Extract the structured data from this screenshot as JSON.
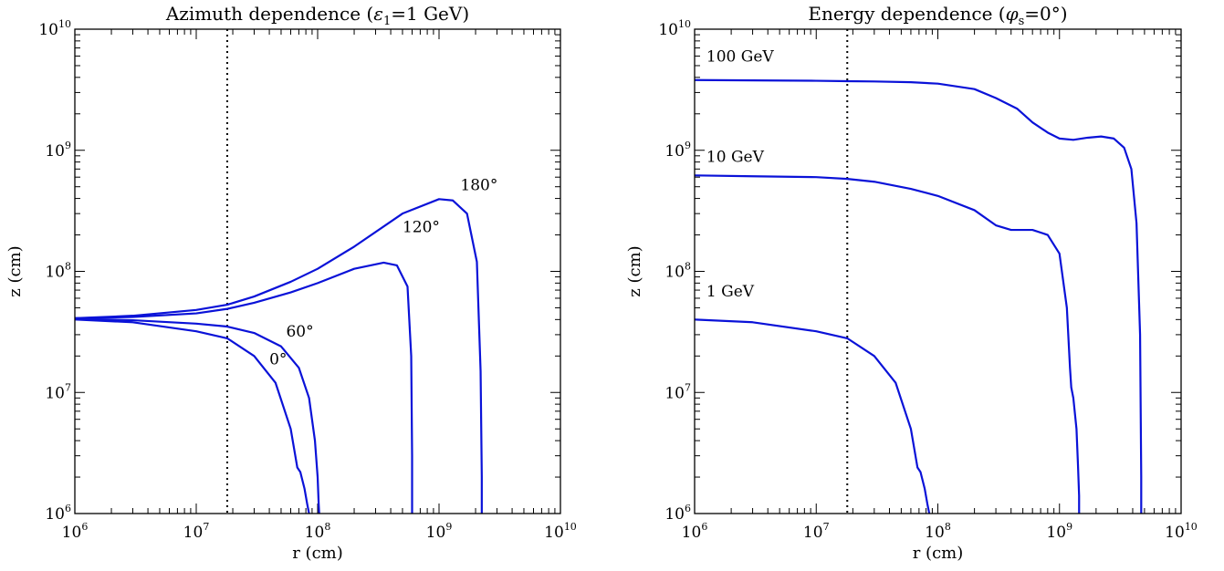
{
  "chart_data": [
    {
      "type": "line",
      "title_main": "Azimuth dependence (",
      "title_symbol": "ε",
      "title_sub": "1",
      "title_rest": "=1 GeV)",
      "xlabel": "r (cm)",
      "ylabel": "z (cm)",
      "xlim": [
        1000000.0,
        10000000000.0
      ],
      "ylim": [
        1000000.0,
        10000000000.0
      ],
      "x_scale": "log",
      "y_scale": "log",
      "x_ticks": [
        {
          "base": "10",
          "exp": "6",
          "value": 1000000.0
        },
        {
          "base": "10",
          "exp": "7",
          "value": 10000000.0
        },
        {
          "base": "10",
          "exp": "8",
          "value": 100000000.0
        },
        {
          "base": "10",
          "exp": "9",
          "value": 1000000000.0
        },
        {
          "base": "10",
          "exp": "10",
          "value": 10000000000.0
        }
      ],
      "y_ticks": [
        {
          "base": "10",
          "exp": "6",
          "value": 1000000.0
        },
        {
          "base": "10",
          "exp": "7",
          "value": 10000000.0
        },
        {
          "base": "10",
          "exp": "8",
          "value": 100000000.0
        },
        {
          "base": "10",
          "exp": "9",
          "value": 1000000000.0
        },
        {
          "base": "10",
          "exp": "10",
          "value": 10000000000.0
        }
      ],
      "vertical_line_x": 18000000.0,
      "series": [
        {
          "label": "0°",
          "label_at": [
            40000000.0,
            17000000.0
          ],
          "x": [
            1000000.0,
            3000000.0,
            10000000.0,
            18000000.0,
            30000000.0,
            45000000.0,
            60000000.0,
            68000000.0,
            72000000.0,
            78000000.0,
            82000000.0,
            85000000.0
          ],
          "y": [
            40000000.0,
            38000000.0,
            32000000.0,
            28000000.0,
            20000000.0,
            12000000.0,
            5000000.0,
            2400000.0,
            2200000.0,
            1600000.0,
            1200000.0,
            1000000.0
          ]
        },
        {
          "label": "60°",
          "label_at": [
            55000000.0,
            29000000.0
          ],
          "x": [
            1000000.0,
            3000000.0,
            10000000.0,
            18000000.0,
            30000000.0,
            50000000.0,
            70000000.0,
            85000000.0,
            95000000.0,
            100000000.0,
            102000000.0,
            103000000.0
          ],
          "y": [
            40500000.0,
            39500000.0,
            37000000.0,
            35000000.0,
            31000000.0,
            24000000.0,
            16000000.0,
            9000000.0,
            4000000.0,
            2000000.0,
            1200000.0,
            1000000.0
          ]
        },
        {
          "label": "120°",
          "label_at": [
            500000000.0,
            210000000.0
          ],
          "x": [
            1000000.0,
            3000000.0,
            10000000.0,
            18000000.0,
            30000000.0,
            60000000.0,
            100000000.0,
            200000000.0,
            350000000.0,
            450000000.0,
            550000000.0,
            590000000.0,
            600000000.0,
            600000000.0
          ],
          "y": [
            41000000.0,
            42000000.0,
            45000000.0,
            49000000.0,
            55000000.0,
            67000000.0,
            80000000.0,
            105000000.0,
            118000000.0,
            112000000.0,
            75000000.0,
            20000000.0,
            3000000.0,
            1000000.0
          ]
        },
        {
          "label": "180°",
          "label_at": [
            1500000000.0,
            470000000.0
          ],
          "x": [
            1000000.0,
            3000000.0,
            10000000.0,
            18000000.0,
            30000000.0,
            60000000.0,
            100000000.0,
            200000000.0,
            500000000.0,
            1000000000.0,
            1300000000.0,
            1700000000.0,
            2050000000.0,
            2200000000.0,
            2250000000.0,
            2250000000.0
          ],
          "y": [
            41000000.0,
            43000000.0,
            48000000.0,
            53000000.0,
            62000000.0,
            82000000.0,
            105000000.0,
            160000000.0,
            300000000.0,
            395000000.0,
            385000000.0,
            300000000.0,
            120000000.0,
            15000000.0,
            2000000.0,
            1000000.0
          ]
        }
      ]
    },
    {
      "type": "line",
      "title_main": "Energy dependence (",
      "title_symbol": "φ",
      "title_sub": "s",
      "title_rest": "=0°)",
      "xlabel": "r (cm)",
      "ylabel": "z (cm)",
      "xlim": [
        1000000.0,
        10000000000.0
      ],
      "ylim": [
        1000000.0,
        10000000000.0
      ],
      "x_scale": "log",
      "y_scale": "log",
      "x_ticks": [
        {
          "base": "10",
          "exp": "6",
          "value": 1000000.0
        },
        {
          "base": "10",
          "exp": "7",
          "value": 10000000.0
        },
        {
          "base": "10",
          "exp": "8",
          "value": 100000000.0
        },
        {
          "base": "10",
          "exp": "9",
          "value": 1000000000.0
        },
        {
          "base": "10",
          "exp": "10",
          "value": 10000000000.0
        }
      ],
      "y_ticks": [
        {
          "base": "10",
          "exp": "6",
          "value": 1000000.0
        },
        {
          "base": "10",
          "exp": "7",
          "value": 10000000.0
        },
        {
          "base": "10",
          "exp": "8",
          "value": 100000000.0
        },
        {
          "base": "10",
          "exp": "9",
          "value": 1000000000.0
        },
        {
          "base": "10",
          "exp": "10",
          "value": 10000000000.0
        }
      ],
      "vertical_line_x": 18000000.0,
      "series": [
        {
          "label": "1 GeV",
          "label_at": [
            1250000.0,
            62000000.0
          ],
          "x": [
            1000000.0,
            3000000.0,
            10000000.0,
            18000000.0,
            30000000.0,
            45000000.0,
            60000000.0,
            68000000.0,
            72000000.0,
            78000000.0,
            82000000.0,
            85000000.0
          ],
          "y": [
            40000000.0,
            38000000.0,
            32000000.0,
            28000000.0,
            20000000.0,
            12000000.0,
            5000000.0,
            2400000.0,
            2200000.0,
            1600000.0,
            1200000.0,
            1000000.0
          ]
        },
        {
          "label": "10 GeV",
          "label_at": [
            1250000.0,
            800000000.0
          ],
          "x": [
            1000000.0,
            3000000.0,
            10000000.0,
            18000000.0,
            30000000.0,
            60000000.0,
            100000000.0,
            200000000.0,
            300000000.0,
            400000000.0,
            600000000.0,
            800000000.0,
            1000000000.0,
            1150000000.0,
            1220000000.0,
            1250000000.0,
            1300000000.0,
            1380000000.0,
            1420000000.0,
            1450000000.0,
            1450000000.0
          ],
          "y": [
            620000000.0,
            610000000.0,
            600000000.0,
            580000000.0,
            550000000.0,
            480000000.0,
            420000000.0,
            320000000.0,
            240000000.0,
            220000000.0,
            220000000.0,
            200000000.0,
            140000000.0,
            50000000.0,
            16000000.0,
            11000000.0,
            9000000.0,
            5000000.0,
            2500000.0,
            1400000.0,
            1000000.0
          ]
        },
        {
          "label": "100 GeV",
          "label_at": [
            1250000.0,
            5400000000.0
          ],
          "x": [
            1000000.0,
            3000000.0,
            10000000.0,
            18000000.0,
            30000000.0,
            60000000.0,
            100000000.0,
            200000000.0,
            300000000.0,
            450000000.0,
            600000000.0,
            800000000.0,
            1000000000.0,
            1300000000.0,
            1700000000.0,
            2200000000.0,
            2800000000.0,
            3400000000.0,
            3900000000.0,
            4300000000.0,
            4600000000.0,
            4700000000.0,
            4700000000.0
          ],
          "y": [
            3800000000.0,
            3780000000.0,
            3750000000.0,
            3720000000.0,
            3700000000.0,
            3650000000.0,
            3550000000.0,
            3200000000.0,
            2700000000.0,
            2200000000.0,
            1700000000.0,
            1400000000.0,
            1250000000.0,
            1220000000.0,
            1270000000.0,
            1300000000.0,
            1250000000.0,
            1050000000.0,
            700000000.0,
            250000000.0,
            30000000.0,
            2000000.0,
            1000000.0
          ]
        }
      ]
    }
  ]
}
